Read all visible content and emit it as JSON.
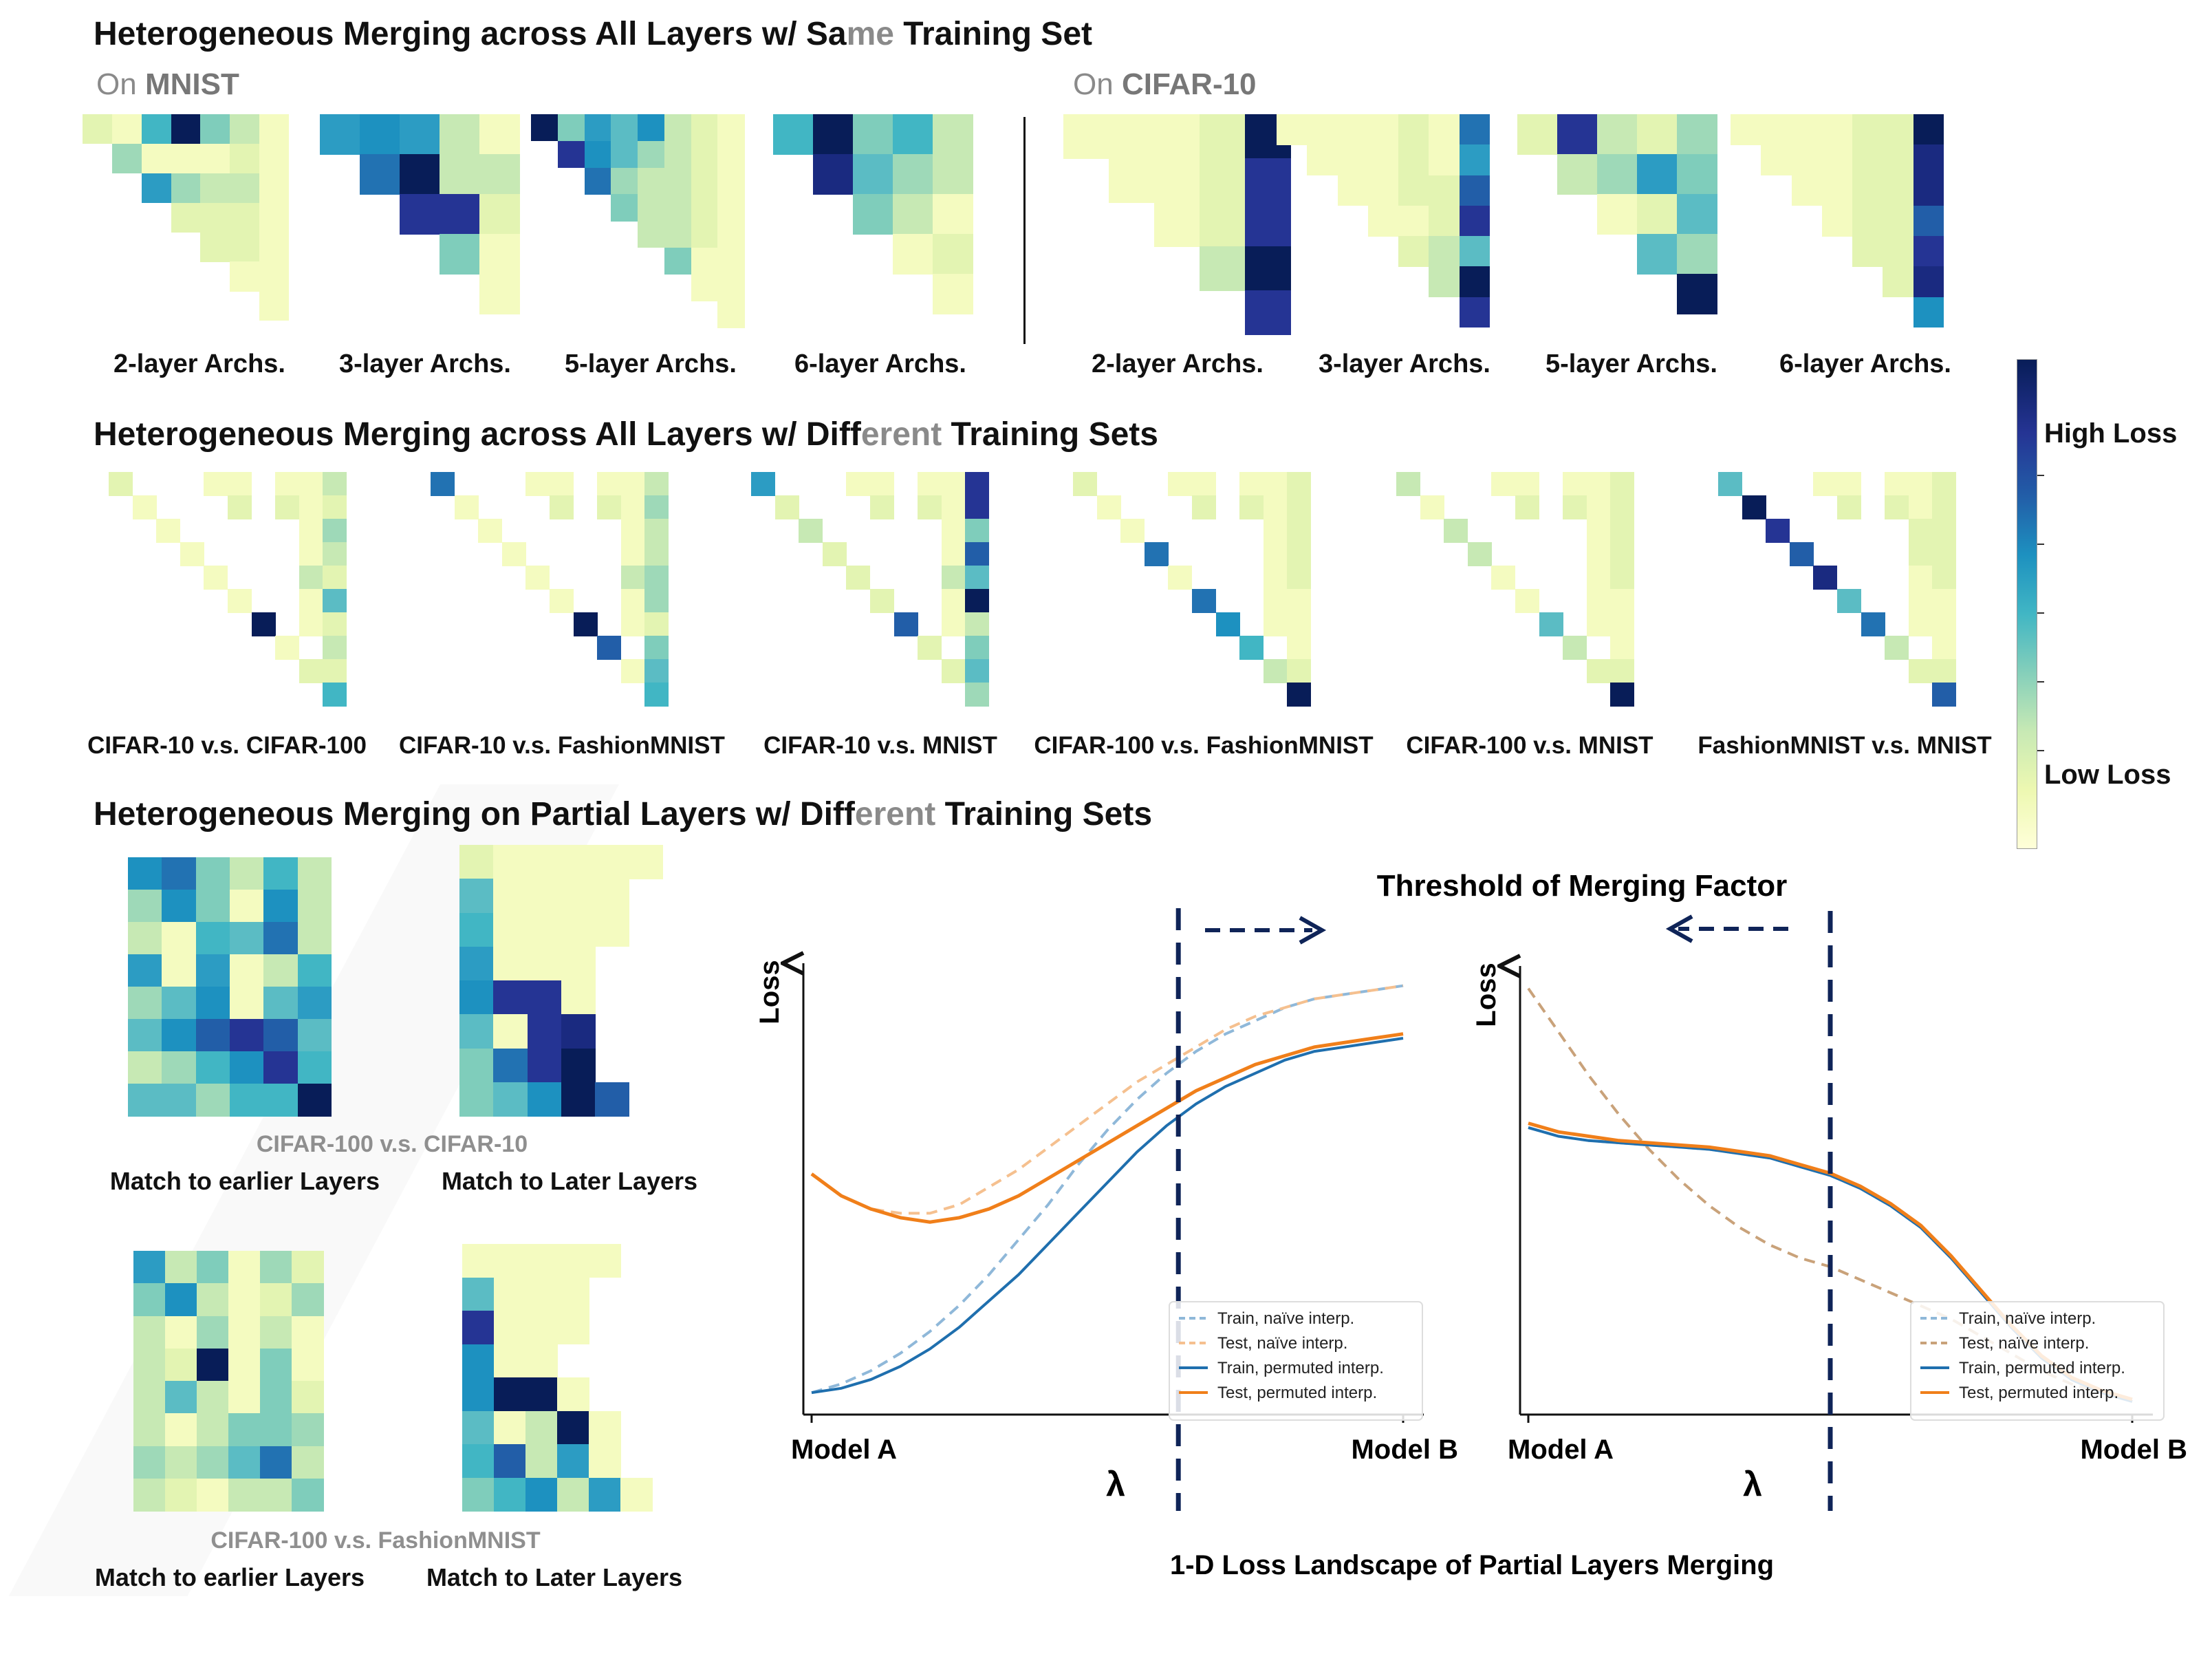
{
  "section1": {
    "title_pre": "Heterogeneous Merging across All Layers w/ Sa",
    "title_gray": "me",
    "title_post": " Training Set",
    "mnist_on": "On",
    "mnist_name": "MNIST",
    "cifar_on": "On",
    "cifar_name": "CIFAR-10",
    "caps": [
      "2-layer Archs.",
      "3-layer Archs.",
      "5-layer Archs.",
      "6-layer Archs.",
      "2-layer Archs.",
      "3-layer Archs.",
      "5-layer Archs.",
      "6-layer Archs."
    ]
  },
  "section2": {
    "title_pre": "Heterogeneous Merging across All Layers w/ Diff",
    "title_gray": "erent",
    "title_post": " Training Sets",
    "caps": [
      "CIFAR-10 v.s. CIFAR-100",
      "CIFAR-10 v.s. FashionMNIST",
      "CIFAR-10 v.s. MNIST",
      "CIFAR-100 v.s. FashionMNIST",
      "CIFAR-100 v.s. MNIST",
      "FashionMNIST v.s. MNIST"
    ]
  },
  "section3": {
    "title_pre": "Heterogeneous Merging on Partial Layers w/ Diff",
    "title_gray": "erent",
    "title_post": " Training Sets",
    "pair1": "CIFAR-100 v.s. CIFAR-10",
    "pair2": "CIFAR-100 v.s. FashionMNIST",
    "earlier": "Match to earlier Layers",
    "later": "Match to Later Layers"
  },
  "colorbar": {
    "high": "High Loss",
    "low": "Low Loss"
  },
  "plots": {
    "threshold_label": "Threshold of Merging Factor",
    "ylabel": "Loss",
    "x_left": "Model A",
    "x_right": "Model B",
    "lambda": "λ",
    "footer": "1-D Loss Landscape of Partial Layers Merging",
    "legend": [
      "Train, naïve interp.",
      "Test, naïve interp.",
      "Train, permuted interp.",
      "Test, permuted interp."
    ],
    "colors": {
      "train_naive": "#8fb8d9",
      "test_naive": "#f5c08f",
      "train_perm": "#1f6fae",
      "test_perm": "#f07f1a",
      "threshold": "#0f2458",
      "test_naive_right": "#c9a27a"
    }
  },
  "chart_data": [
    {
      "type": "line",
      "title": "",
      "xlabel": "",
      "ylabel": "Loss",
      "x": [
        0,
        0.05,
        0.1,
        0.15,
        0.2,
        0.25,
        0.3,
        0.35,
        0.4,
        0.45,
        0.5,
        0.55,
        0.6,
        0.65,
        0.7,
        0.75,
        0.8,
        0.85,
        0.9,
        0.95,
        1.0
      ],
      "series": [
        {
          "name": "Train, naïve interp.",
          "values": [
            0.05,
            0.07,
            0.1,
            0.14,
            0.19,
            0.25,
            0.32,
            0.4,
            0.48,
            0.57,
            0.65,
            0.72,
            0.78,
            0.83,
            0.87,
            0.9,
            0.93,
            0.95,
            0.96,
            0.97,
            0.98
          ]
        },
        {
          "name": "Test, naïve interp.",
          "values": [
            0.55,
            0.5,
            0.47,
            0.46,
            0.46,
            0.48,
            0.52,
            0.56,
            0.61,
            0.66,
            0.71,
            0.76,
            0.8,
            0.84,
            0.88,
            0.91,
            0.93,
            0.95,
            0.96,
            0.97,
            0.98
          ]
        },
        {
          "name": "Train, permuted interp.",
          "values": [
            0.05,
            0.06,
            0.08,
            0.11,
            0.15,
            0.2,
            0.26,
            0.32,
            0.39,
            0.46,
            0.53,
            0.6,
            0.66,
            0.71,
            0.75,
            0.78,
            0.81,
            0.83,
            0.84,
            0.85,
            0.86
          ]
        },
        {
          "name": "Test, permuted interp.",
          "values": [
            0.55,
            0.5,
            0.47,
            0.45,
            0.44,
            0.45,
            0.47,
            0.5,
            0.54,
            0.58,
            0.62,
            0.66,
            0.7,
            0.74,
            0.77,
            0.8,
            0.82,
            0.84,
            0.85,
            0.86,
            0.87
          ]
        }
      ],
      "threshold_x": 0.62
    },
    {
      "type": "line",
      "title": "",
      "xlabel": "",
      "ylabel": "Loss",
      "x": [
        0,
        0.05,
        0.1,
        0.15,
        0.2,
        0.25,
        0.3,
        0.35,
        0.4,
        0.45,
        0.5,
        0.55,
        0.6,
        0.65,
        0.7,
        0.75,
        0.8,
        0.85,
        0.9,
        0.95,
        1.0
      ],
      "series": [
        {
          "name": "Train, naïve interp.",
          "values": [
            0.66,
            0.64,
            0.63,
            0.625,
            0.62,
            0.615,
            0.61,
            0.6,
            0.59,
            0.57,
            0.55,
            0.52,
            0.48,
            0.43,
            0.36,
            0.28,
            0.2,
            0.13,
            0.08,
            0.05,
            0.03
          ]
        },
        {
          "name": "Test, naïve interp.",
          "values": [
            0.98,
            0.88,
            0.78,
            0.69,
            0.61,
            0.54,
            0.48,
            0.43,
            0.39,
            0.36,
            0.34,
            0.31,
            0.28,
            0.25,
            0.22,
            0.18,
            0.14,
            0.1,
            0.07,
            0.05,
            0.03
          ]
        },
        {
          "name": "Train, permuted interp.",
          "values": [
            0.66,
            0.64,
            0.63,
            0.625,
            0.62,
            0.615,
            0.61,
            0.6,
            0.59,
            0.57,
            0.55,
            0.52,
            0.48,
            0.43,
            0.36,
            0.28,
            0.2,
            0.13,
            0.08,
            0.05,
            0.03
          ]
        },
        {
          "name": "Test, permuted interp.",
          "values": [
            0.67,
            0.65,
            0.64,
            0.63,
            0.625,
            0.62,
            0.615,
            0.605,
            0.595,
            0.575,
            0.555,
            0.525,
            0.485,
            0.435,
            0.365,
            0.285,
            0.205,
            0.135,
            0.085,
            0.055,
            0.035
          ]
        }
      ],
      "threshold_x": 0.5
    }
  ]
}
